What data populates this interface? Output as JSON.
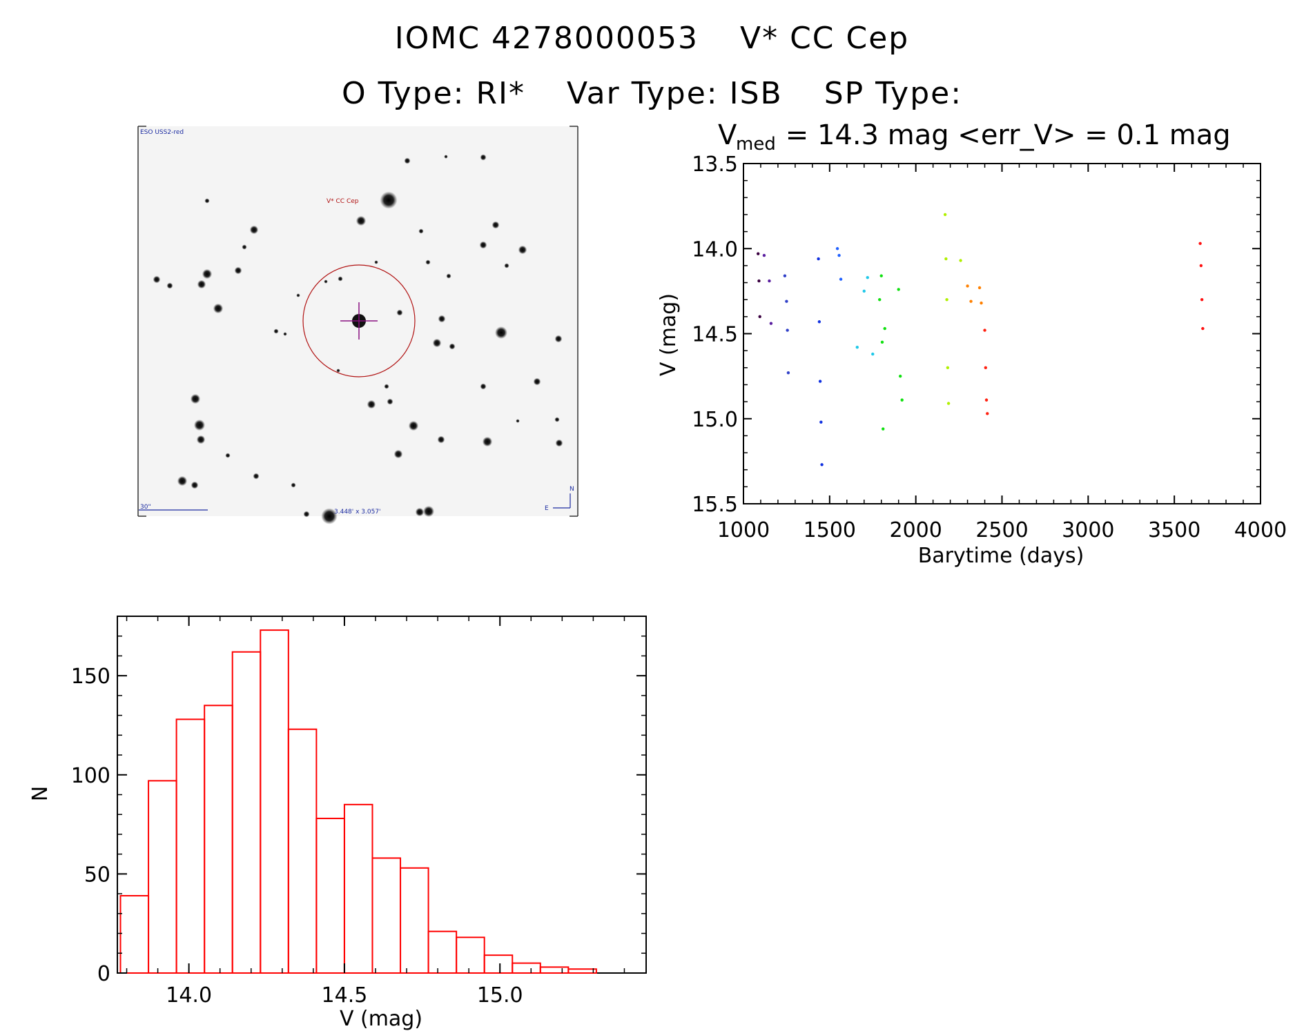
{
  "header": {
    "object_id": "IOMC 4278000053",
    "object_name": "V* CC Cep",
    "o_type_label": "O Type: RI*",
    "var_type_label": "Var Type: ISB",
    "sp_type_label": "SP Type:"
  },
  "sky_image": {
    "survey_label": "ESO USS2-red",
    "target_label": "V* CC Cep",
    "scale_label": "30\"",
    "fov_label": "3.448' x 3.057'",
    "north_label": "N",
    "east_label": "E"
  },
  "chart_data": [
    {
      "type": "scatter",
      "title_main": "V",
      "title_sub": "med",
      "title_rest": " = 14.3 mag <err_V> = 0.1 mag",
      "xlabel": "Barytime (days)",
      "ylabel": "V (mag)",
      "xlim": [
        1000,
        4000
      ],
      "ylim": [
        15.5,
        13.5
      ],
      "y_inverted": true,
      "xticks": [
        "1000",
        "1500",
        "2000",
        "2500",
        "3000",
        "3500",
        "4000"
      ],
      "yticks": [
        "13.5",
        "14.0",
        "14.5",
        "15.0",
        "15.5"
      ],
      "series": [
        {
          "color": "#3a0040",
          "x": [
            1085,
            1090,
            1095
          ],
          "y": [
            14.03,
            14.19,
            14.4
          ]
        },
        {
          "color": "#5a1fa0",
          "x": [
            1120,
            1150,
            1160
          ],
          "y": [
            14.04,
            14.19,
            14.44
          ]
        },
        {
          "color": "#3040c8",
          "x": [
            1240,
            1250,
            1255,
            1260
          ],
          "y": [
            14.16,
            14.31,
            14.48,
            14.73
          ]
        },
        {
          "color": "#1030e0",
          "x": [
            1435,
            1440,
            1445,
            1450,
            1455
          ],
          "y": [
            14.06,
            14.43,
            14.78,
            15.02,
            15.27
          ]
        },
        {
          "color": "#2060ff",
          "x": [
            1545,
            1555,
            1565
          ],
          "y": [
            14.0,
            14.04,
            14.18
          ]
        },
        {
          "color": "#20c8e8",
          "x": [
            1660,
            1700,
            1720,
            1750
          ],
          "y": [
            14.58,
            14.25,
            14.17,
            14.62
          ]
        },
        {
          "color": "#10e010",
          "x": [
            1790,
            1800,
            1805,
            1810,
            1820,
            1900,
            1910,
            1920
          ],
          "y": [
            14.3,
            14.16,
            14.55,
            15.06,
            14.47,
            14.24,
            14.75,
            14.89
          ]
        },
        {
          "color": "#b0f000",
          "x": [
            2170,
            2175,
            2180,
            2185,
            2190,
            2260
          ],
          "y": [
            13.8,
            14.06,
            14.3,
            14.7,
            14.91,
            14.07
          ]
        },
        {
          "color": "#ff8000",
          "x": [
            2300,
            2320,
            2370,
            2380
          ],
          "y": [
            14.22,
            14.31,
            14.23,
            14.32
          ]
        },
        {
          "color": "#ff2010",
          "x": [
            2400,
            2405,
            2410,
            2415
          ],
          "y": [
            14.48,
            14.7,
            14.89,
            14.97
          ]
        },
        {
          "color": "#ff1010",
          "x": [
            3650,
            3655,
            3660,
            3665
          ],
          "y": [
            13.97,
            14.1,
            14.3,
            14.47
          ]
        }
      ]
    },
    {
      "type": "bar",
      "xlabel": "V (mag)",
      "ylabel": "N",
      "xlim": [
        13.77,
        15.47
      ],
      "ylim": [
        0,
        180
      ],
      "xticks": [
        "14.0",
        "14.5",
        "15.0"
      ],
      "yticks": [
        "0",
        "50",
        "100",
        "150"
      ],
      "bin_edges": [
        13.78,
        13.87,
        13.96,
        14.05,
        14.14,
        14.23,
        14.32,
        14.41,
        14.5,
        14.59,
        14.68,
        14.77,
        14.86,
        14.95,
        15.04,
        15.13,
        15.22,
        15.31
      ],
      "values": [
        39,
        97,
        128,
        135,
        162,
        173,
        123,
        78,
        85,
        58,
        53,
        21,
        18,
        9,
        5,
        3,
        2
      ],
      "bar_color": "#ff0000"
    }
  ]
}
